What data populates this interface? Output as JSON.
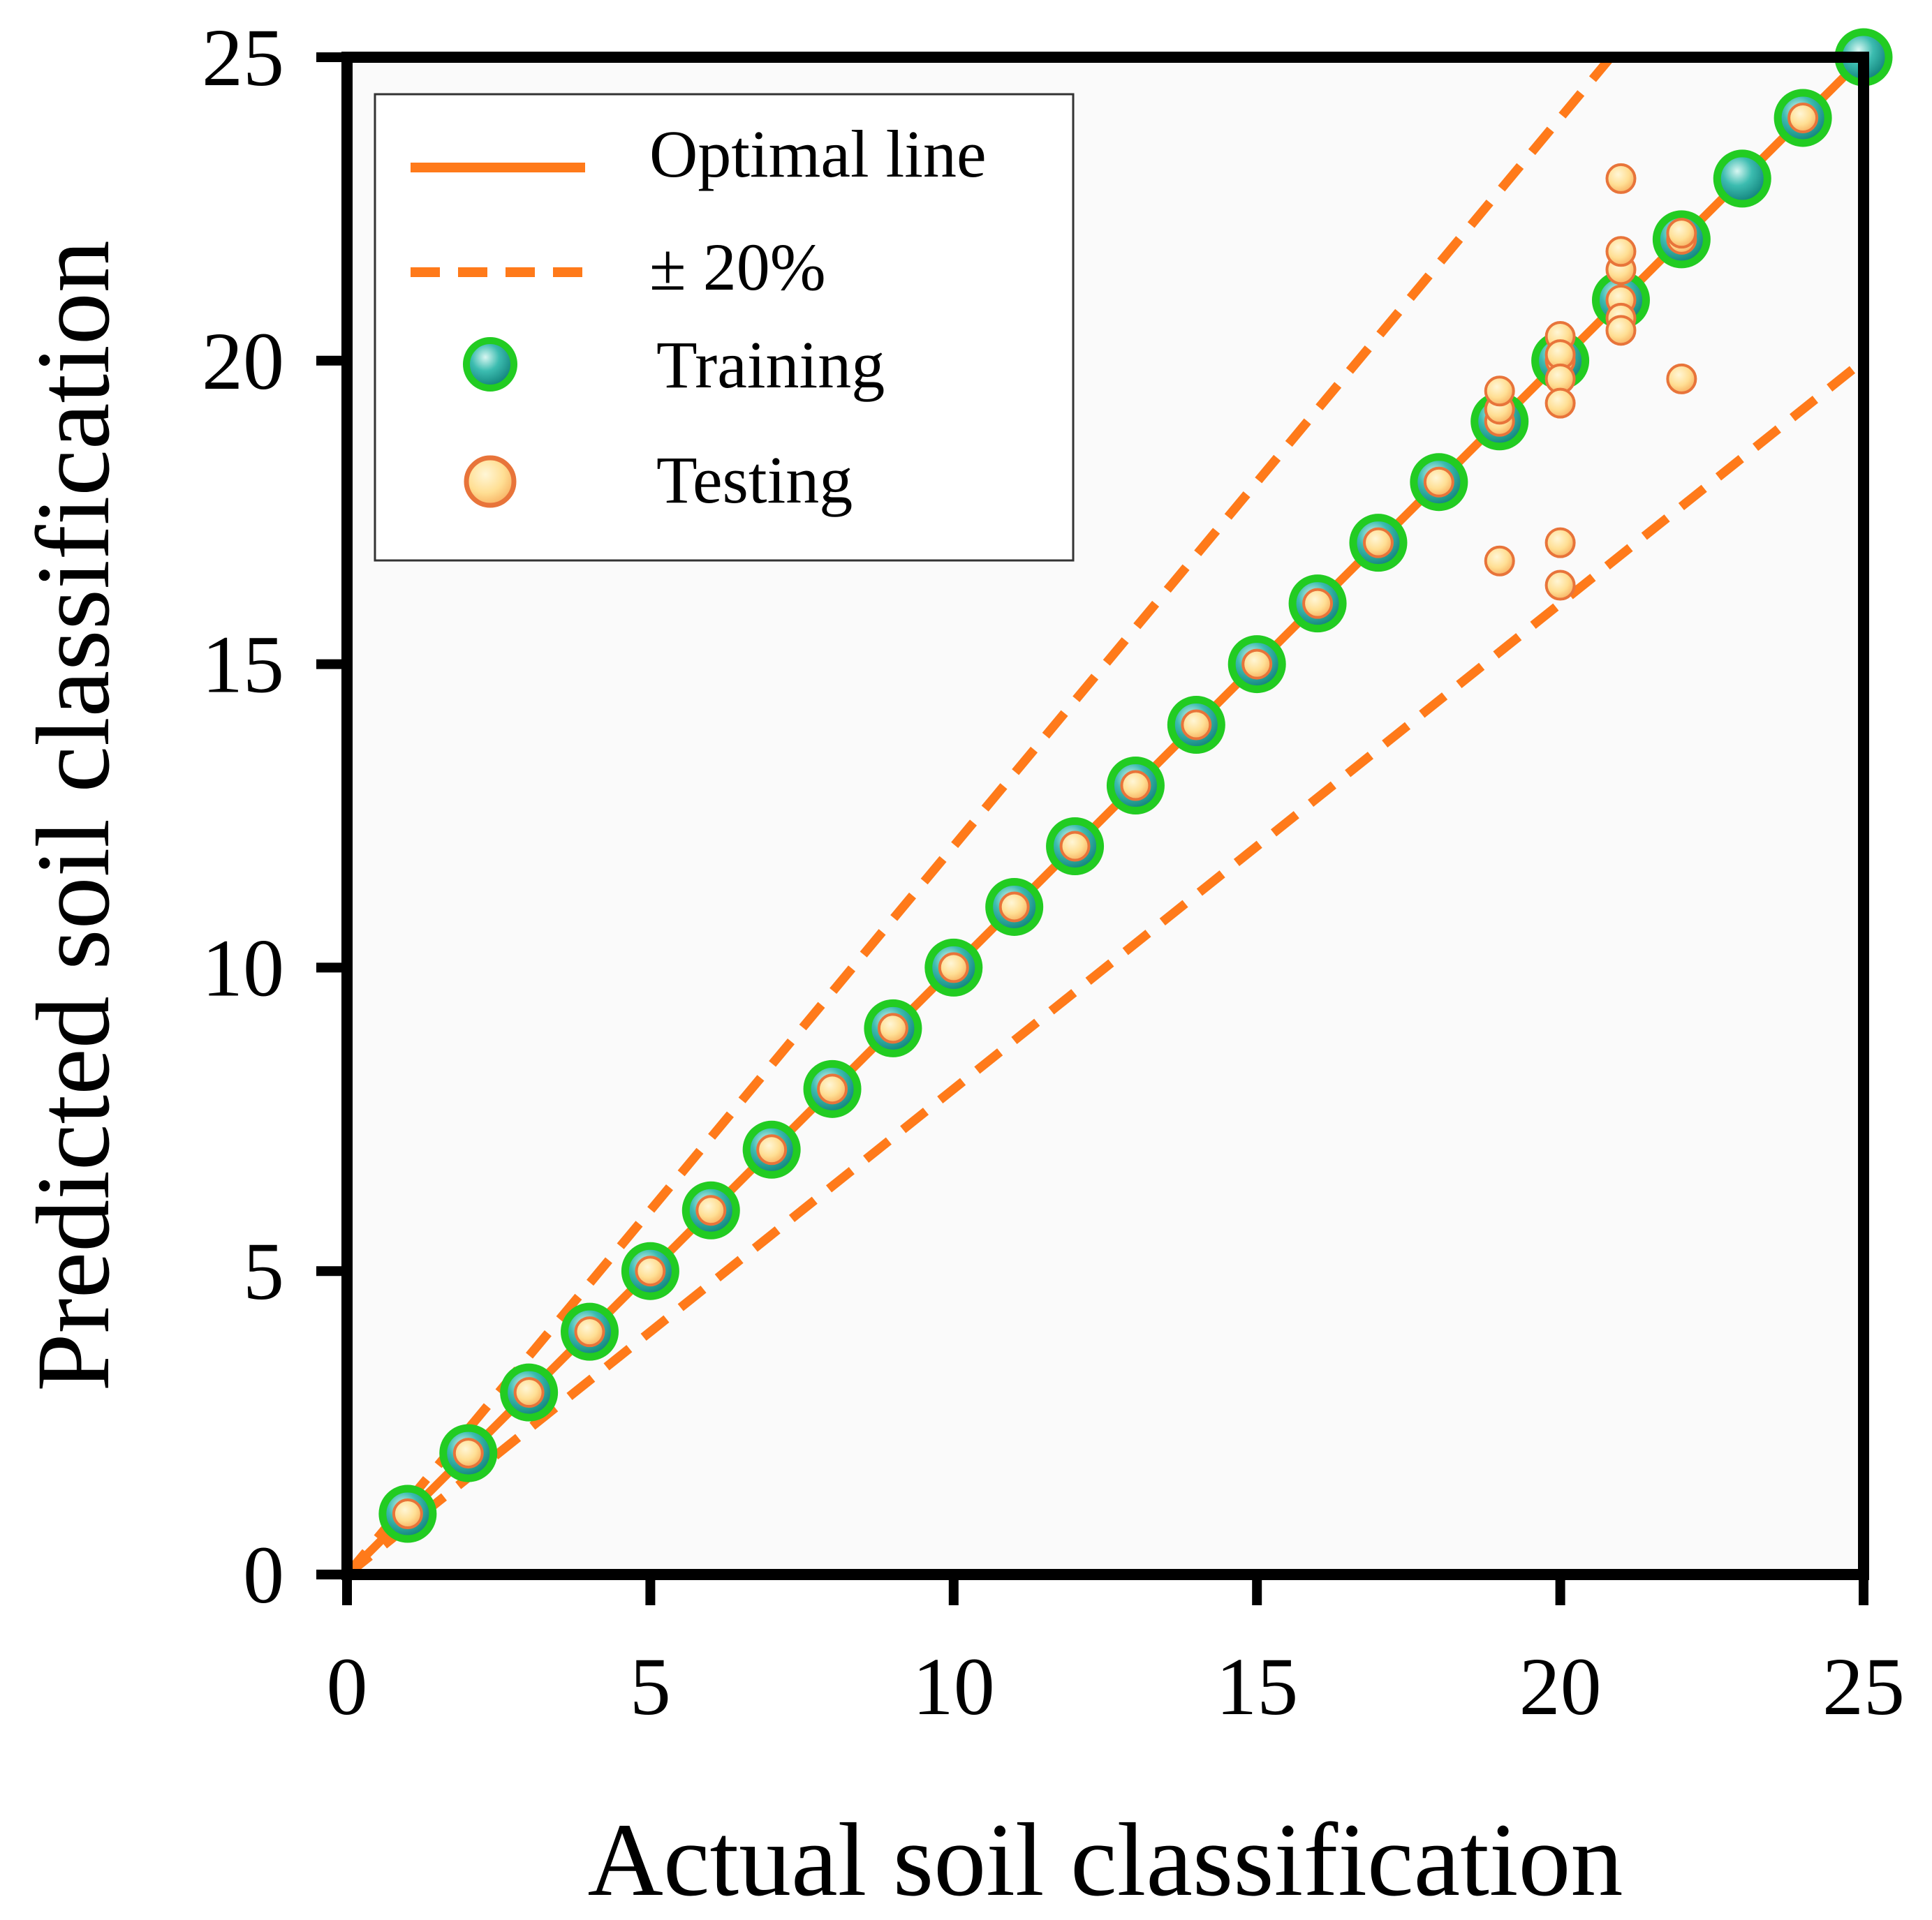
{
  "chart_data": {
    "type": "scatter",
    "title": "",
    "xlabel": "Actual soil classification",
    "ylabel": "Predicted soil classification",
    "xlim": [
      0,
      25
    ],
    "ylim": [
      0,
      25
    ],
    "xticks": [
      "0",
      "5",
      "10",
      "15",
      "20",
      "25"
    ],
    "yticks": [
      "0",
      "5",
      "10",
      "15",
      "20",
      "25"
    ],
    "grid": false,
    "legend_position": "top-left",
    "colors": {
      "optimal": "#ff7a1a",
      "band": "#ff7a1a",
      "training_fill": "#1aa59a",
      "training_edge": "#22cc22",
      "testing_fill": "#ffe09a",
      "testing_edge": "#e8743a",
      "plot_bg": "#fafafa"
    },
    "lines": [
      {
        "name": "Optimal line",
        "style": "solid",
        "slope": 1.0
      },
      {
        "name": "± 20%",
        "style": "dashed",
        "slope": 1.2
      },
      {
        "name": "± 20%",
        "style": "dashed",
        "slope": 0.8
      }
    ],
    "series": [
      {
        "name": "Training",
        "points": [
          [
            1,
            1
          ],
          [
            2,
            2
          ],
          [
            3,
            3
          ],
          [
            4,
            4
          ],
          [
            5,
            5
          ],
          [
            6,
            6
          ],
          [
            7,
            7
          ],
          [
            8,
            8
          ],
          [
            9,
            9
          ],
          [
            10,
            10
          ],
          [
            11,
            11
          ],
          [
            12,
            12
          ],
          [
            13,
            13
          ],
          [
            14,
            14
          ],
          [
            15,
            15
          ],
          [
            16,
            16
          ],
          [
            17,
            17
          ],
          [
            18,
            18
          ],
          [
            19,
            19
          ],
          [
            20,
            20
          ],
          [
            21,
            21
          ],
          [
            22,
            22
          ],
          [
            23,
            23
          ],
          [
            24,
            24
          ],
          [
            25,
            25
          ]
        ]
      },
      {
        "name": "Testing",
        "points": [
          [
            1,
            1
          ],
          [
            2,
            2
          ],
          [
            3,
            3
          ],
          [
            4,
            4
          ],
          [
            5,
            5
          ],
          [
            6,
            6
          ],
          [
            7,
            7
          ],
          [
            8,
            8
          ],
          [
            9,
            9
          ],
          [
            10,
            10
          ],
          [
            11,
            11
          ],
          [
            12,
            12
          ],
          [
            13,
            13
          ],
          [
            14,
            14
          ],
          [
            15,
            15
          ],
          [
            16,
            16
          ],
          [
            17,
            17
          ],
          [
            18,
            18
          ],
          [
            19,
            19
          ],
          [
            19,
            19.2
          ],
          [
            19,
            19.5
          ],
          [
            19,
            16.7
          ],
          [
            20,
            20
          ],
          [
            20,
            20.4
          ],
          [
            20,
            20.1
          ],
          [
            20,
            19.7
          ],
          [
            20,
            19.3
          ],
          [
            20,
            17.0
          ],
          [
            20,
            16.3
          ],
          [
            21,
            21
          ],
          [
            21,
            21.5
          ],
          [
            21,
            21.8
          ],
          [
            21,
            20.7
          ],
          [
            21,
            20.5
          ],
          [
            21,
            23.0
          ],
          [
            22,
            22
          ],
          [
            22,
            22.1
          ],
          [
            22,
            19.7
          ],
          [
            24,
            24
          ]
        ]
      }
    ]
  },
  "legend": {
    "items": [
      {
        "label": "Optimal line",
        "kind": "solid-line"
      },
      {
        "label": "± 20%",
        "kind": "dashed-line"
      },
      {
        "label": "Training",
        "kind": "training-marker"
      },
      {
        "label": "Testing",
        "kind": "testing-marker"
      }
    ]
  }
}
